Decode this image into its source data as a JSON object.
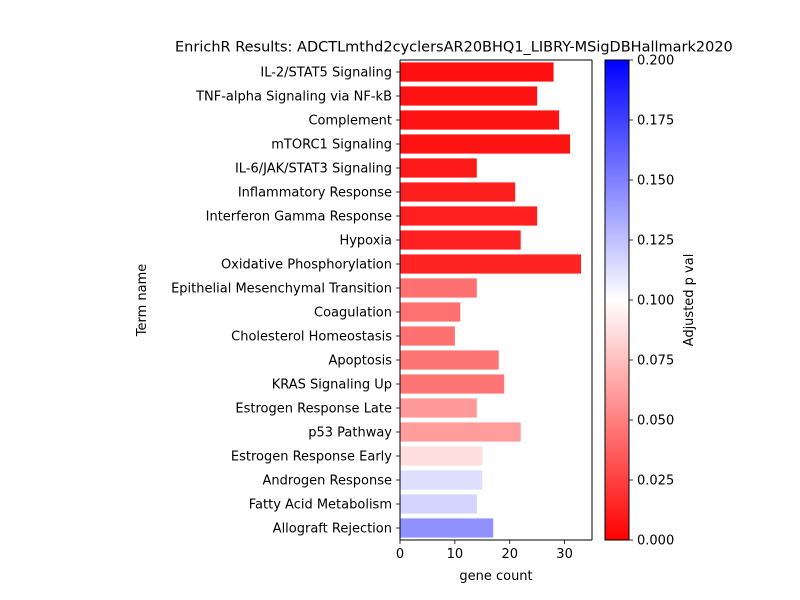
{
  "chart_data": {
    "type": "bar",
    "orientation": "horizontal",
    "title": "EnrichR Results: ADCTLmthd2cyclersAR20BHQ1_LIBRY-MSigDBHallmark2020",
    "xlabel": "gene count",
    "ylabel": "Term name",
    "xlim": [
      0,
      35
    ],
    "xticks": [
      0,
      10,
      20,
      30
    ],
    "grid": false,
    "categories": [
      "IL-2/STAT5 Signaling",
      "TNF-alpha Signaling via NF-kB",
      "Complement",
      "mTORC1 Signaling",
      "IL-6/JAK/STAT3 Signaling",
      "Inflammatory Response",
      "Interferon Gamma Response",
      "Hypoxia",
      "Oxidative Phosphorylation",
      "Epithelial Mesenchymal Transition",
      "Coagulation",
      "Cholesterol Homeostasis",
      "Apoptosis",
      "KRAS Signaling Up",
      "Estrogen Response Late",
      "p53 Pathway",
      "Estrogen Response Early",
      "Androgen Response",
      "Fatty Acid Metabolism",
      "Allograft Rejection"
    ],
    "values": [
      28,
      25,
      29,
      31,
      14,
      21,
      25,
      22,
      33,
      14,
      11,
      10,
      18,
      19,
      14,
      22,
      15,
      15,
      14,
      17
    ],
    "adjusted_p": [
      0.006,
      0.007,
      0.007,
      0.007,
      0.01,
      0.012,
      0.012,
      0.013,
      0.014,
      0.044,
      0.044,
      0.044,
      0.046,
      0.046,
      0.06,
      0.061,
      0.087,
      0.113,
      0.117,
      0.143
    ],
    "colorbar": {
      "label": "Adjusted p val",
      "range": [
        0,
        0.2
      ],
      "ticks": [
        "0.000",
        "0.025",
        "0.050",
        "0.075",
        "0.100",
        "0.125",
        "0.150",
        "0.175",
        "0.200"
      ],
      "colors": {
        "low": "#ff0000",
        "mid": "#ffffff",
        "high": "#0000ff"
      }
    }
  }
}
